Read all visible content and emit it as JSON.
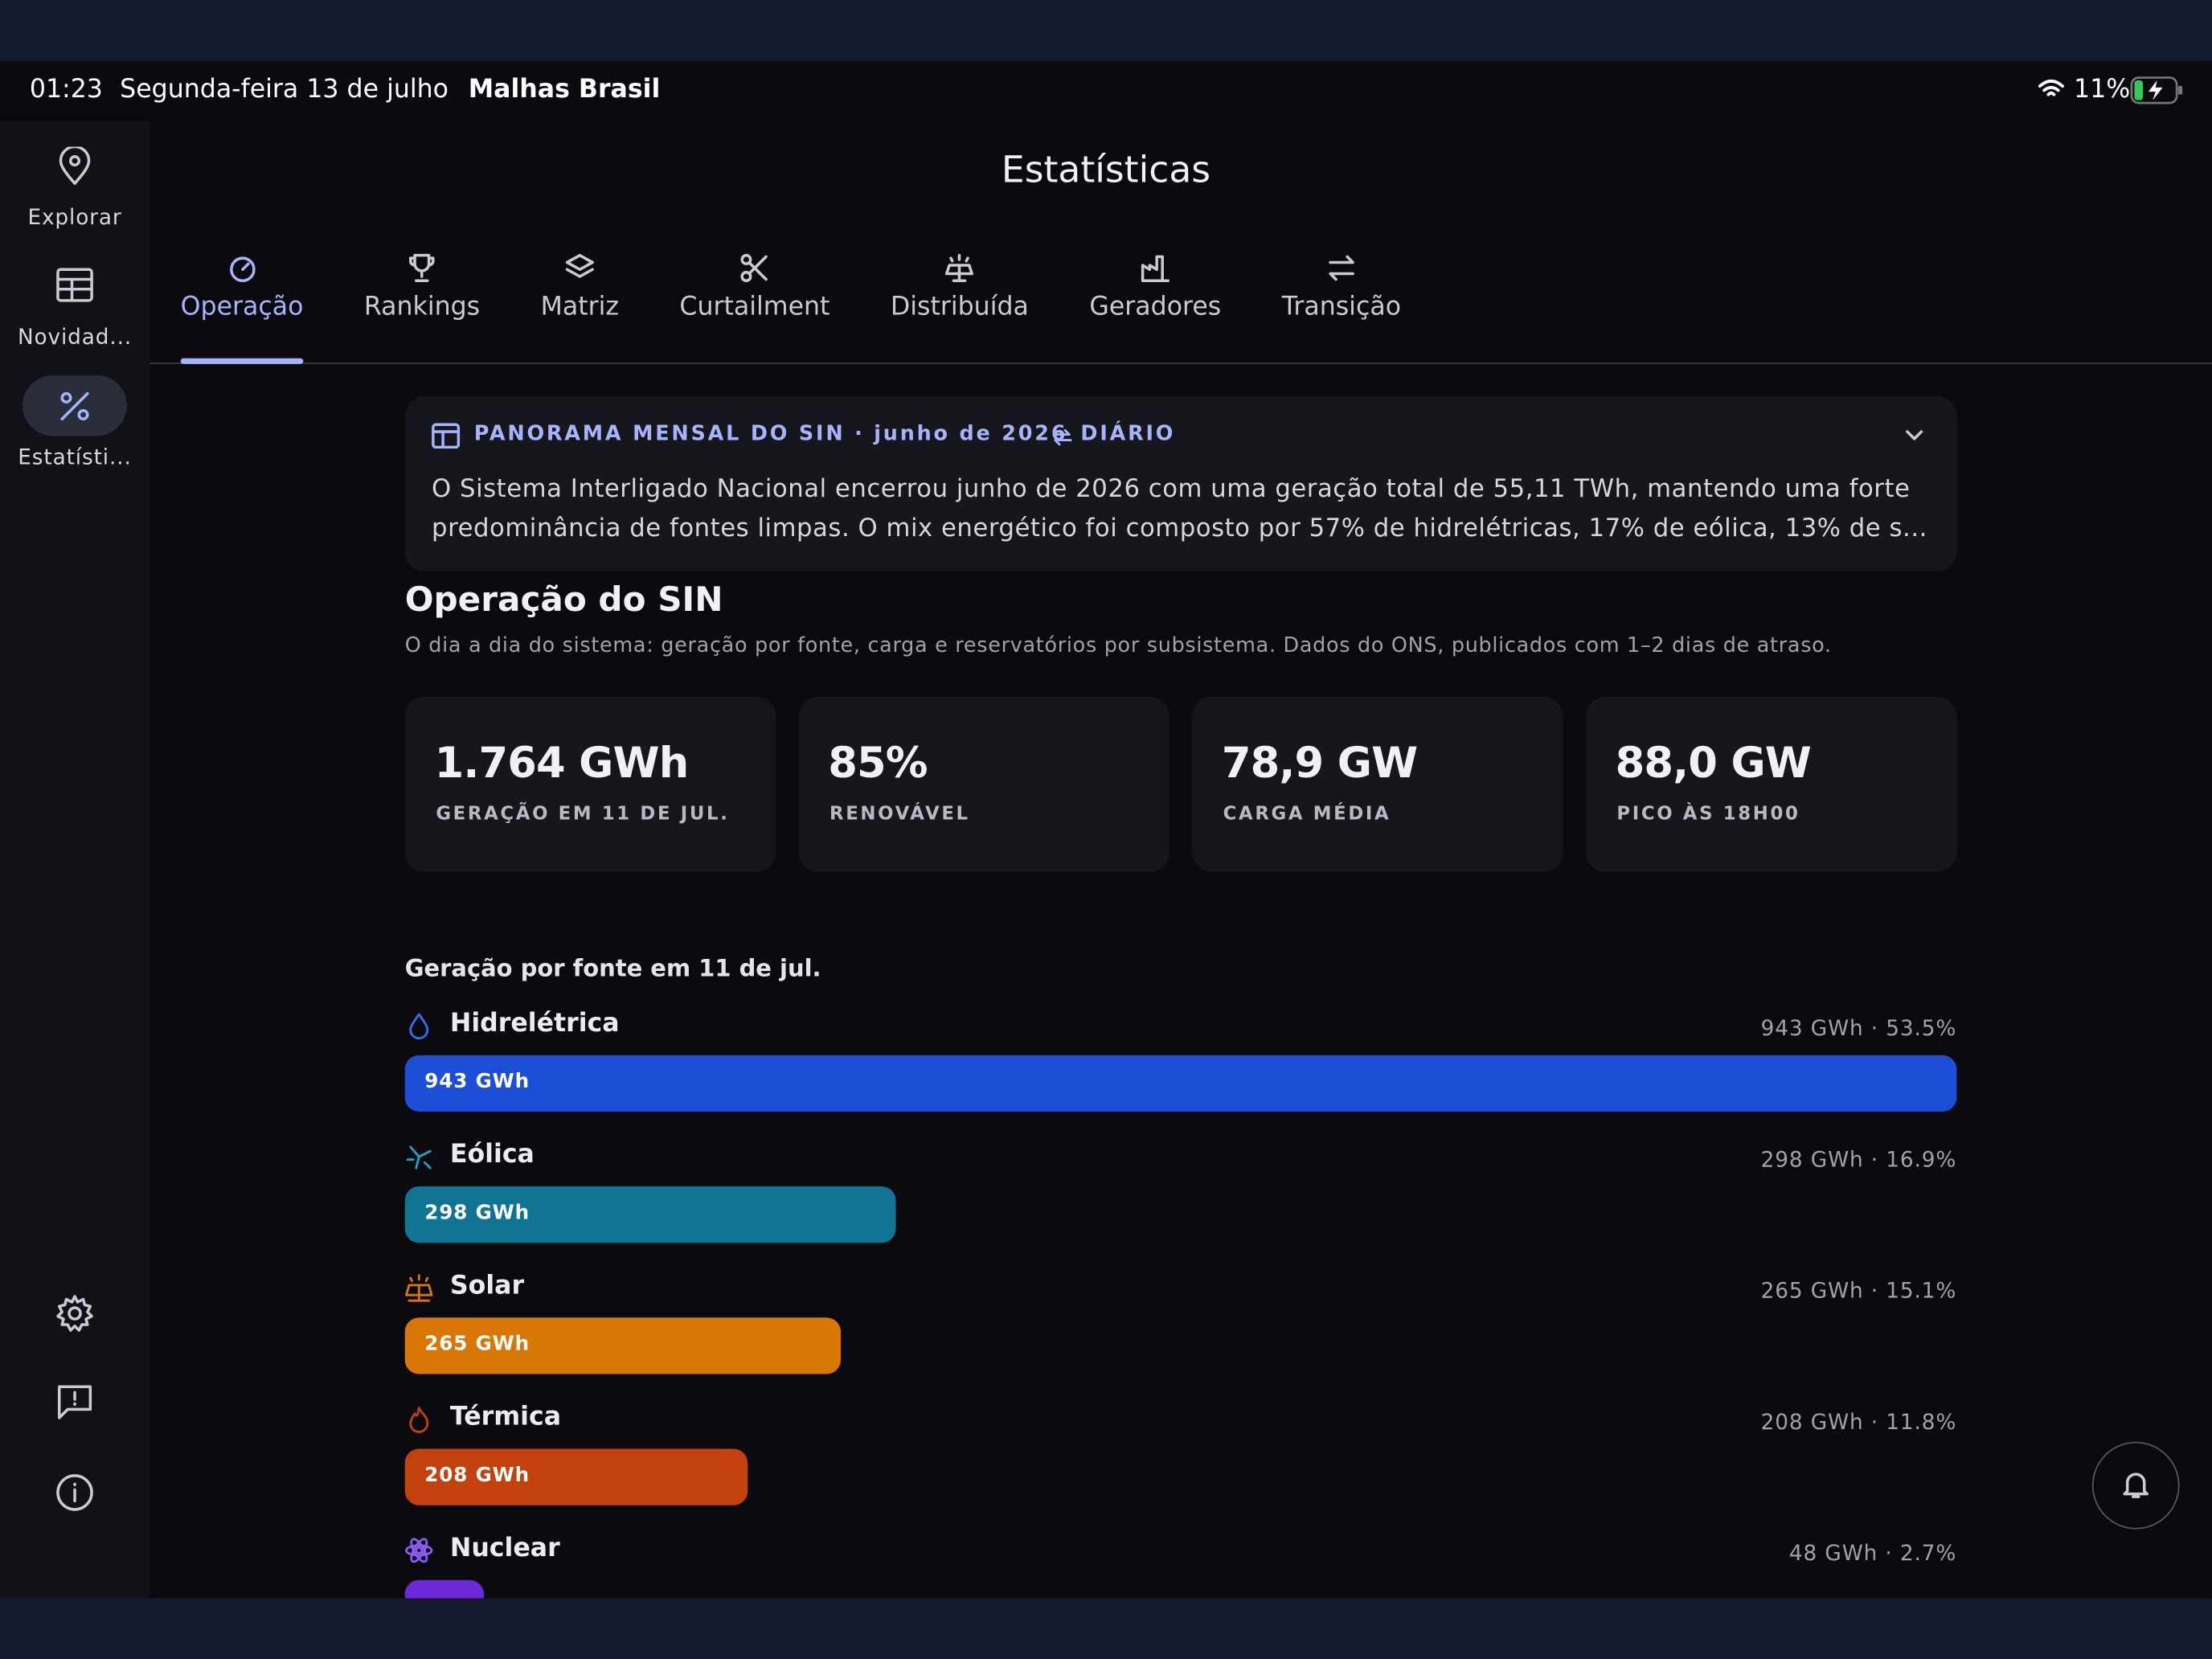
{
  "status_bar": {
    "time": "01:23",
    "date": "Segunda-feira 13 de julho",
    "app": "Malhas Brasil",
    "battery": "11%"
  },
  "sidebar": {
    "items": [
      "Explorar",
      "Novidad...",
      "Estatísti..."
    ]
  },
  "header": {
    "title": "Estatísticas"
  },
  "tabs": [
    "Operação",
    "Rankings",
    "Matriz",
    "Curtailment",
    "Distribuída",
    "Geradores",
    "Transição"
  ],
  "panorama": {
    "title": "PANORAMA MENSAL DO SIN · junho de 2026",
    "mode": "DIÁRIO",
    "text": "O Sistema Interligado Nacional encerrou junho de 2026 com uma geração total de 55,11 TWh, mantendo uma forte predominância de fontes limpas. O mix energético foi composto por 57% de hidrelétricas, 17% de eólica, 13% de s..."
  },
  "section": {
    "title": "Operação do SIN",
    "subtitle": "O dia a dia do sistema: geração por fonte, carga e reservatórios por subsistema. Dados do ONS, publicados com 1–2 dias de atraso."
  },
  "kpis": [
    {
      "value": "1.764 GWh",
      "label": "GERAÇÃO EM 11 DE JUL."
    },
    {
      "value": "85%",
      "label": "RENOVÁVEL"
    },
    {
      "value": "78,9 GW",
      "label": "CARGA MÉDIA"
    },
    {
      "value": "88,0 GW",
      "label": "PICO ÀS 18H00"
    }
  ],
  "generation": {
    "title": "Geração por fonte em 11 de jul.",
    "sources": [
      {
        "name": "Hidrelétrica",
        "value": 943,
        "value_label": "943 GWh",
        "detail": "943 GWh · 53.5%",
        "color": "#1d4ed8"
      },
      {
        "name": "Eólica",
        "value": 298,
        "value_label": "298 GWh",
        "detail": "298 GWh · 16.9%",
        "color": "#117493"
      },
      {
        "name": "Solar",
        "value": 265,
        "value_label": "265 GWh",
        "detail": "265 GWh · 15.1%",
        "color": "#d97706"
      },
      {
        "name": "Térmica",
        "value": 208,
        "value_label": "208 GWh",
        "detail": "208 GWh · 11.8%",
        "color": "#c2410c"
      },
      {
        "name": "Nuclear",
        "value": 48,
        "detail": "48 GWh · 2.7%",
        "color": "#6d28d9"
      }
    ]
  }
}
